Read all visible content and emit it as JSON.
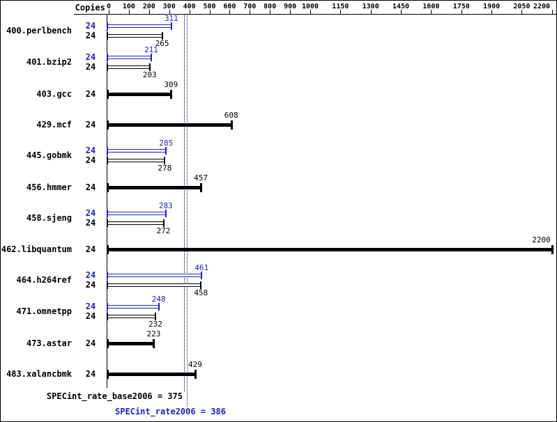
{
  "header": {
    "copies_label": "Copies"
  },
  "colors": {
    "peak_blue": "#2222bb",
    "base_black": "#000000",
    "background": "#ffffff",
    "border": "#000000"
  },
  "chart_data": {
    "type": "bar",
    "orientation": "horizontal",
    "xlim": [
      0,
      2200
    ],
    "x_ticks": [
      0,
      100,
      200,
      300,
      400,
      500,
      600,
      700,
      800,
      900,
      1000,
      1150,
      1300,
      1450,
      1600,
      1750,
      1900,
      2050,
      2200
    ],
    "benchmarks": [
      {
        "name": "400.perlbench",
        "bars": [
          {
            "series": "peak",
            "copies": "24",
            "value": 311
          },
          {
            "series": "base",
            "copies": "24",
            "value": 265
          }
        ]
      },
      {
        "name": "401.bzip2",
        "bars": [
          {
            "series": "peak",
            "copies": "24",
            "value": 211
          },
          {
            "series": "base",
            "copies": "24",
            "value": 203
          }
        ]
      },
      {
        "name": "403.gcc",
        "bars": [
          {
            "series": "base",
            "copies": "24",
            "value": 309
          }
        ]
      },
      {
        "name": "429.mcf",
        "bars": [
          {
            "series": "base",
            "copies": "24",
            "value": 608
          }
        ]
      },
      {
        "name": "445.gobmk",
        "bars": [
          {
            "series": "peak",
            "copies": "24",
            "value": 285
          },
          {
            "series": "base",
            "copies": "24",
            "value": 278
          }
        ]
      },
      {
        "name": "456.hmmer",
        "bars": [
          {
            "series": "base",
            "copies": "24",
            "value": 457
          }
        ]
      },
      {
        "name": "458.sjeng",
        "bars": [
          {
            "series": "peak",
            "copies": "24",
            "value": 283
          },
          {
            "series": "base",
            "copies": "24",
            "value": 272
          }
        ]
      },
      {
        "name": "462.libquantum",
        "bars": [
          {
            "series": "base",
            "copies": "24",
            "value": 2200
          }
        ]
      },
      {
        "name": "464.h264ref",
        "bars": [
          {
            "series": "peak",
            "copies": "24",
            "value": 461
          },
          {
            "series": "base",
            "copies": "24",
            "value": 458
          }
        ]
      },
      {
        "name": "471.omnetpp",
        "bars": [
          {
            "series": "peak",
            "copies": "24",
            "value": 248
          },
          {
            "series": "base",
            "copies": "24",
            "value": 232
          }
        ]
      },
      {
        "name": "473.astar",
        "bars": [
          {
            "series": "base",
            "copies": "24",
            "value": 223
          }
        ]
      },
      {
        "name": "483.xalancbmk",
        "bars": [
          {
            "series": "base",
            "copies": "24",
            "value": 429
          }
        ]
      }
    ],
    "reference_lines": [
      {
        "series": "base",
        "value": 375
      },
      {
        "series": "peak",
        "value": 386
      }
    ],
    "summary": {
      "base_label": "SPECint_rate_base2006 = 375",
      "peak_label": "SPECint_rate2006 = 386",
      "base_value": 375,
      "peak_value": 386
    }
  }
}
